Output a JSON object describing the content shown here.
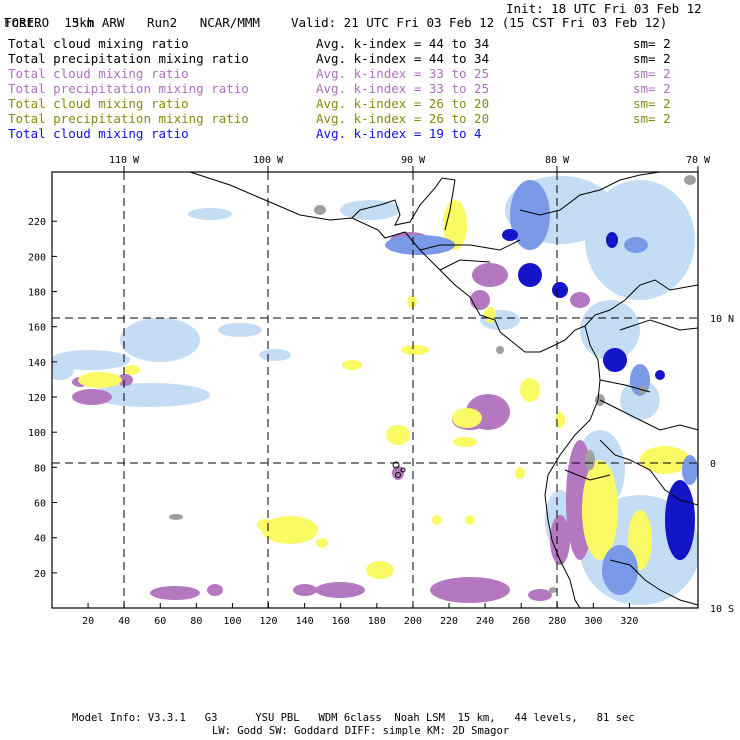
{
  "header": {
    "model": "TORERO",
    "resolution": "15km ARW",
    "run": "Run2",
    "org": "NCAR/MMM",
    "fcst_label": "Fcst.",
    "fcst_value": "3 h",
    "init": "Init: 18 UTC Fri 03 Feb 12",
    "valid": "Valid: 21 UTC Fri 03 Feb 12 (15 CST Fri 03 Feb 12)"
  },
  "legend": [
    {
      "field": "Total cloud mixing ratio",
      "kindex": "Avg. k-index = 44 to 34",
      "sm": "sm= 2",
      "color": "#000000"
    },
    {
      "field": "Total precipitation mixing ratio",
      "kindex": "Avg. k-index = 44 to 34",
      "sm": "sm= 2",
      "color": "#000000"
    },
    {
      "field": "Total cloud mixing ratio",
      "kindex": "Avg. k-index = 33 to 25",
      "sm": "sm= 2",
      "color": "#b070c0"
    },
    {
      "field": "Total precipitation mixing ratio",
      "kindex": "Avg. k-index = 33 to 25",
      "sm": "sm= 2",
      "color": "#b070c0"
    },
    {
      "field": "Total cloud mixing ratio",
      "kindex": "Avg. k-index = 26 to 20",
      "sm": "sm= 2",
      "color": "#8a8a10"
    },
    {
      "field": "Total precipitation mixing ratio",
      "kindex": "Avg. k-index = 26 to 20",
      "sm": "sm= 2",
      "color": "#8a8a10"
    },
    {
      "field": "Total cloud mixing ratio",
      "kindex": "Avg. k-index = 19 to 4",
      "sm": "",
      "color": "#1010e0"
    }
  ],
  "map": {
    "lon_labels": [
      "110 W",
      "100 W",
      "90 W",
      "80 W",
      "70 W"
    ],
    "lat_labels": [
      "10 N",
      "0",
      "10 S"
    ],
    "y_ticks": [
      "220",
      "200",
      "180",
      "160",
      "140",
      "120",
      "100",
      "80",
      "60",
      "40",
      "20"
    ],
    "x_ticks": [
      "20",
      "40",
      "60",
      "80",
      "100",
      "120",
      "140",
      "160",
      "180",
      "200",
      "220",
      "240",
      "260",
      "280",
      "300",
      "320"
    ],
    "colors": {
      "light_blue": "#c4dcf4",
      "mid_blue": "#7a9ae8",
      "dark_blue": "#1414c8",
      "purple": "#b478c0",
      "yellow": "#fafa64",
      "gray": "#a0a0a0"
    }
  },
  "footer": {
    "line1": "Model Info: V3.3.1   G3      YSU PBL   WDM 6class  Noah LSM  15 km,   44 levels,   81 sec",
    "line2": "LW: Godd SW: Goddard DIFF: simple KM: 2D Smagor"
  }
}
